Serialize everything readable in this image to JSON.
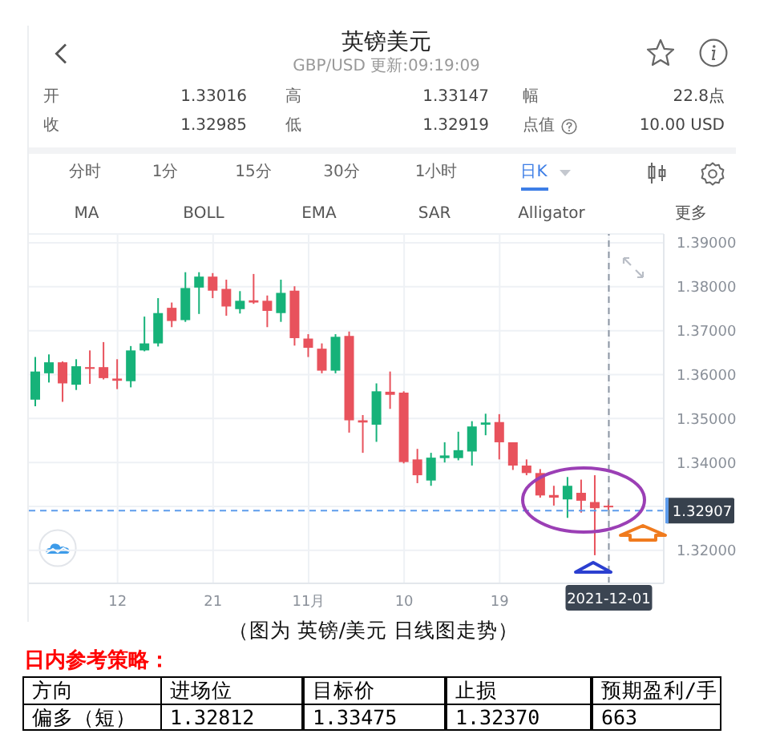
{
  "chart_data": {
    "type": "candlestick",
    "title": "英镑美元",
    "subtitle": "GBP/USD 更新:09:19:09",
    "categories": [
      null,
      null,
      null,
      null,
      null,
      null,
      "12",
      null,
      null,
      null,
      null,
      null,
      null,
      "21",
      null,
      null,
      null,
      null,
      null,
      null,
      "11月",
      null,
      null,
      null,
      null,
      null,
      null,
      "10",
      null,
      null,
      null,
      null,
      null,
      null,
      "19",
      null,
      null,
      null,
      null,
      null,
      null,
      null,
      "2021-12-01"
    ],
    "ohlc": [
      [
        1.3543,
        1.364,
        1.3528,
        1.3607
      ],
      [
        1.3603,
        1.3646,
        1.3582,
        1.3628
      ],
      [
        1.3628,
        1.363,
        1.3538,
        1.358
      ],
      [
        1.3577,
        1.3635,
        1.3565,
        1.3619
      ],
      [
        1.3617,
        1.3655,
        1.3579,
        1.3613
      ],
      [
        1.3617,
        1.3674,
        1.3589,
        1.3592
      ],
      [
        1.3591,
        1.3635,
        1.3567,
        1.3586
      ],
      [
        1.3585,
        1.3665,
        1.3571,
        1.3655
      ],
      [
        1.3655,
        1.3732,
        1.3653,
        1.3671
      ],
      [
        1.3671,
        1.3774,
        1.3664,
        1.374
      ],
      [
        1.3752,
        1.3764,
        1.3708,
        1.3722
      ],
      [
        1.3724,
        1.3833,
        1.372,
        1.3797
      ],
      [
        1.3798,
        1.3833,
        1.3738,
        1.3823
      ],
      [
        1.3823,
        1.3831,
        1.3774,
        1.3791
      ],
      [
        1.3795,
        1.3816,
        1.3734,
        1.3755
      ],
      [
        1.3749,
        1.379,
        1.3739,
        1.3768
      ],
      [
        1.3769,
        1.3829,
        1.3761,
        1.3764
      ],
      [
        1.3768,
        1.378,
        1.3708,
        1.3745
      ],
      [
        1.374,
        1.3816,
        1.372,
        1.3786
      ],
      [
        1.3791,
        1.3801,
        1.3666,
        1.3683
      ],
      [
        1.3682,
        1.3692,
        1.364,
        1.3661
      ],
      [
        1.3659,
        1.3671,
        1.3603,
        1.3609
      ],
      [
        1.3609,
        1.3692,
        1.3603,
        1.3686
      ],
      [
        1.3688,
        1.3698,
        1.3468,
        1.3496
      ],
      [
        1.3496,
        1.3508,
        1.3422,
        1.3491
      ],
      [
        1.3486,
        1.358,
        1.3447,
        1.3562
      ],
      [
        1.3561,
        1.3607,
        1.3522,
        1.3554
      ],
      [
        1.3559,
        1.3562,
        1.3398,
        1.3401
      ],
      [
        1.3407,
        1.3431,
        1.3353,
        1.3371
      ],
      [
        1.3359,
        1.3422,
        1.3347,
        1.3411
      ],
      [
        1.341,
        1.3446,
        1.34,
        1.3416
      ],
      [
        1.341,
        1.347,
        1.3405,
        1.3428
      ],
      [
        1.3425,
        1.3494,
        1.3393,
        1.3482
      ],
      [
        1.3486,
        1.3511,
        1.3462,
        1.3491
      ],
      [
        1.3492,
        1.351,
        1.3407,
        1.3446
      ],
      [
        1.3446,
        1.3446,
        1.3383,
        1.3393
      ],
      [
        1.3393,
        1.3407,
        1.3371,
        1.3376
      ],
      [
        1.3376,
        1.3385,
        1.332,
        1.3325
      ],
      [
        1.3326,
        1.3347,
        1.3302,
        1.332
      ],
      [
        1.3316,
        1.3367,
        1.3274,
        1.3347
      ],
      [
        1.3331,
        1.3361,
        1.3286,
        1.3313
      ],
      [
        1.331,
        1.3371,
        1.3189,
        1.3296
      ],
      [
        1.33016,
        1.33147,
        1.32919,
        1.32985
      ]
    ],
    "colors": [
      "#16b279",
      "#16b279",
      "#e8525c",
      "#16b279",
      "#e8525c",
      "#e8525c",
      "#e8525c",
      "#16b279",
      "#16b279",
      "#16b279",
      "#e8525c",
      "#16b279",
      "#16b279",
      "#e8525c",
      "#e8525c",
      "#16b279",
      "#e8525c",
      "#e8525c",
      "#16b279",
      "#e8525c",
      "#e8525c",
      "#e8525c",
      "#16b279",
      "#e8525c",
      "#e8525c",
      "#16b279",
      "#e8525c",
      "#e8525c",
      "#e8525c",
      "#16b279",
      "#16b279",
      "#16b279",
      "#16b279",
      "#16b279",
      "#e8525c",
      "#e8525c",
      "#e8525c",
      "#e8525c",
      "#e8525c",
      "#16b279",
      "#e8525c",
      "#e8525c",
      "#e8525c"
    ],
    "ylim": [
      1.3125,
      1.392
    ],
    "yticks": [
      {
        "value": 1.32,
        "label": "1.32000"
      },
      {
        "value": 1.33,
        "label": null
      },
      {
        "value": 1.34,
        "label": "1.34000"
      },
      {
        "value": 1.35,
        "label": "1.35000"
      },
      {
        "value": 1.36,
        "label": "1.36000"
      },
      {
        "value": 1.37,
        "label": "1.37000"
      },
      {
        "value": 1.38,
        "label": "1.38000"
      },
      {
        "value": 1.39,
        "label": "1.39000"
      }
    ],
    "grid": true,
    "ref_lines": [
      {
        "axis": "y",
        "value": 1.32907,
        "label": "1.32907",
        "color": "#5d9cec",
        "line_style": "dashed"
      },
      {
        "axis": "x",
        "value": "2021-12-01",
        "color": "#8c96a3",
        "line_style": "dashed"
      }
    ],
    "annotations": [
      "开",
      "1.33016",
      "高",
      "1.33147",
      "幅",
      "22.8点",
      "收",
      "1.32985",
      "低",
      "1.32919",
      "点值",
      "10.00 USD",
      "分时",
      "1分",
      "15分",
      "30分",
      "1小时",
      "日K",
      "MA",
      "BOLL",
      "EMA",
      "SAR",
      "Alligator",
      "更多",
      "（图为 英镑/美元 日线图走势）",
      "日内参考策略：",
      "方向",
      "进场位",
      "目标价",
      "止损",
      "预期盈利/手",
      "偏多（短）",
      "1.32812",
      "1.33475",
      "1.32370",
      "663"
    ]
  }
}
